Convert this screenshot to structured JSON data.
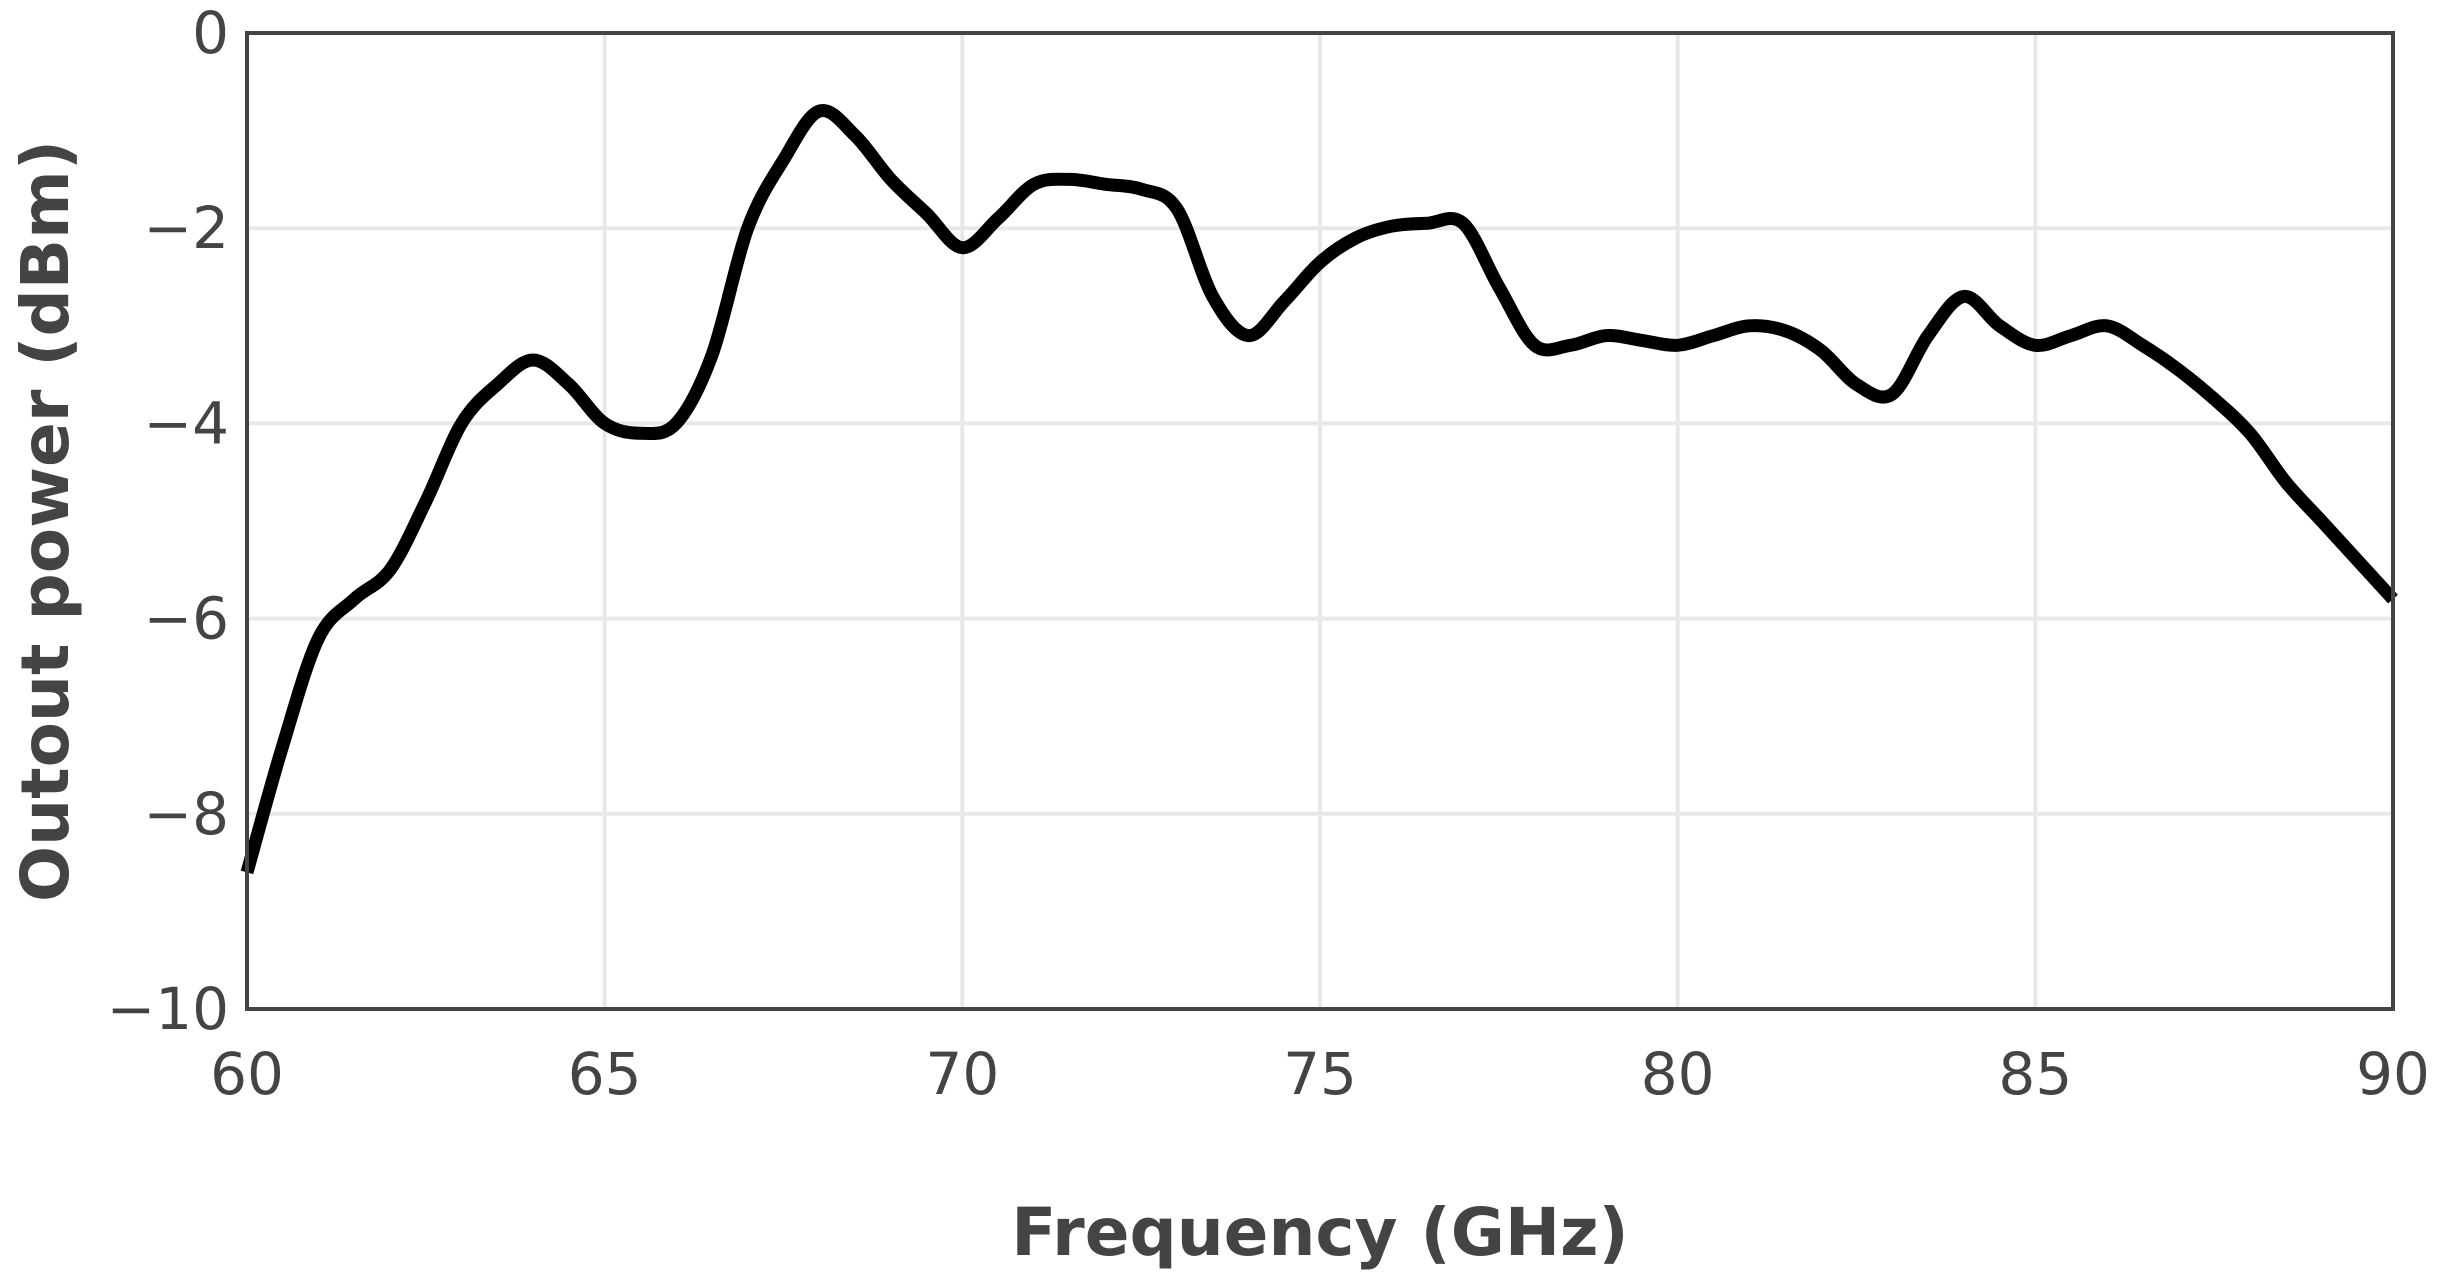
{
  "chart_data": {
    "type": "line",
    "xlabel": "Frequency (GHz)",
    "ylabel": "Outout power (dBm)",
    "xlim": [
      60,
      90
    ],
    "ylim": [
      -10,
      0
    ],
    "xticks": [
      60,
      65,
      70,
      75,
      80,
      85,
      90
    ],
    "yticks": [
      0,
      -2,
      -4,
      -6,
      -8,
      -10
    ],
    "ytick_labels": [
      "0",
      "−2",
      "−4",
      "−6",
      "−8",
      "−10"
    ],
    "xtick_labels": [
      "60",
      "65",
      "70",
      "75",
      "80",
      "85",
      "90"
    ],
    "grid": true,
    "line_color": "#000000",
    "series": [
      {
        "x": [
          60.0,
          60.5,
          61.0,
          61.5,
          62.0,
          62.5,
          63.0,
          63.5,
          64.0,
          64.5,
          65.0,
          65.5,
          66.0,
          66.5,
          67.0,
          67.5,
          68.0,
          68.5,
          69.0,
          69.5,
          70.0,
          70.5,
          71.0,
          71.5,
          72.0,
          72.5,
          73.0,
          73.5,
          74.0,
          74.5,
          75.0,
          75.5,
          76.0,
          76.5,
          77.0,
          77.5,
          78.0,
          78.5,
          79.0,
          79.5,
          80.0,
          80.5,
          81.0,
          81.5,
          82.0,
          82.5,
          83.0,
          83.5,
          84.0,
          84.5,
          85.0,
          85.5,
          86.0,
          86.5,
          87.0,
          87.5,
          88.0,
          88.5,
          89.0,
          89.5,
          90.0
        ],
        "values": [
          -8.6,
          -7.3,
          -6.2,
          -5.8,
          -5.5,
          -4.8,
          -4.0,
          -3.6,
          -3.35,
          -3.6,
          -4.0,
          -4.1,
          -4.0,
          -3.3,
          -2.0,
          -1.3,
          -0.8,
          -1.05,
          -1.5,
          -1.85,
          -2.2,
          -1.9,
          -1.55,
          -1.5,
          -1.55,
          -1.6,
          -1.8,
          -2.7,
          -3.1,
          -2.75,
          -2.35,
          -2.1,
          -1.98,
          -1.95,
          -1.95,
          -2.6,
          -3.2,
          -3.2,
          -3.1,
          -3.15,
          -3.2,
          -3.1,
          -3.0,
          -3.05,
          -3.25,
          -3.6,
          -3.7,
          -3.1,
          -2.7,
          -3.0,
          -3.2,
          -3.1,
          -3.0,
          -3.2,
          -3.45,
          -3.75,
          -4.1,
          -4.6,
          -5.0,
          -5.4,
          -5.8
        ]
      }
    ]
  }
}
